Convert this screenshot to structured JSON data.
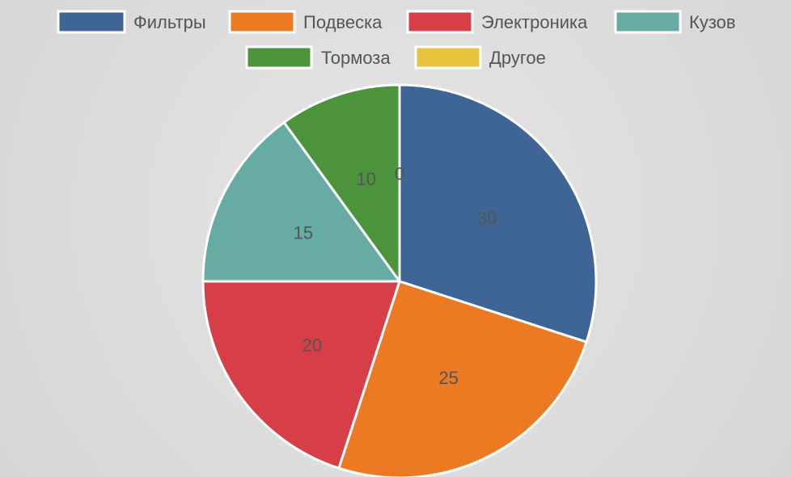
{
  "chart_data": {
    "type": "pie",
    "categories": [
      "Фильтры",
      "Подвеска",
      "Электроника",
      "Кузов",
      "Тормоза",
      "Другое"
    ],
    "values": [
      30,
      25,
      20,
      15,
      10,
      0
    ],
    "colors": [
      "#3f6597",
      "#ec7a22",
      "#d63f48",
      "#66aba4",
      "#4b943c",
      "#e8c33d"
    ],
    "legend": "top",
    "data_labels": true
  }
}
